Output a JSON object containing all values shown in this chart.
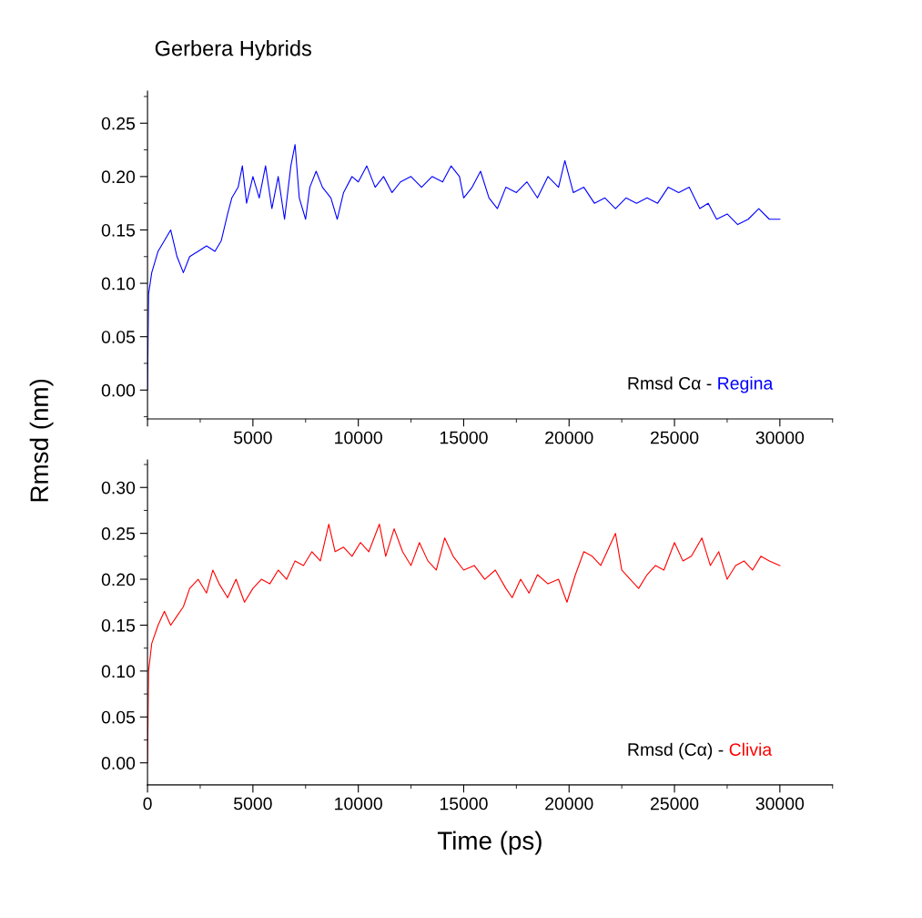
{
  "chart_data": [
    {
      "type": "line",
      "title": "Gerbera Hybrids",
      "ylabel": "Rmsd (nm)",
      "annotations": [
        "Rmsd Cα -"
      ],
      "xlim": [
        0,
        32500
      ],
      "ylim": [
        -0.027,
        0.28
      ],
      "xticks": [
        {
          "value": 0,
          "label": null
        },
        5000,
        10000,
        15000,
        20000,
        25000,
        30000
      ],
      "yticks": [
        {
          "value": 0,
          "label": "0.00"
        },
        0.05,
        {
          "value": 0.1,
          "label": "0.10"
        },
        0.15,
        {
          "value": 0.2,
          "label": "0.20"
        },
        0.25
      ],
      "grid": false,
      "legend": "bottom right",
      "series": [
        {
          "name": "Regina",
          "color": "#0000ff",
          "x": [
            0,
            50,
            200,
            500,
            800,
            1100,
            1400,
            1700,
            2000,
            2400,
            2800,
            3200,
            3500,
            3800,
            4000,
            4300,
            4500,
            4700,
            5000,
            5300,
            5600,
            5900,
            6200,
            6500,
            6800,
            7000,
            7200,
            7500,
            7700,
            8000,
            8300,
            8700,
            9000,
            9300,
            9700,
            10000,
            10400,
            10800,
            11200,
            11600,
            12000,
            12500,
            13000,
            13500,
            14000,
            14400,
            14800,
            15000,
            15400,
            15800,
            16200,
            16600,
            17000,
            17500,
            18000,
            18500,
            19000,
            19500,
            19800,
            20200,
            20700,
            21200,
            21700,
            22200,
            22700,
            23200,
            23700,
            24200,
            24700,
            25200,
            25700,
            26200,
            26600,
            27000,
            27500,
            28000,
            28500,
            29000,
            29500,
            30000
          ],
          "values": [
            0.0,
            0.09,
            0.11,
            0.13,
            0.14,
            0.15,
            0.125,
            0.11,
            0.125,
            0.13,
            0.135,
            0.13,
            0.14,
            0.165,
            0.18,
            0.19,
            0.21,
            0.175,
            0.2,
            0.18,
            0.21,
            0.17,
            0.2,
            0.16,
            0.21,
            0.23,
            0.18,
            0.16,
            0.19,
            0.205,
            0.19,
            0.18,
            0.16,
            0.185,
            0.2,
            0.195,
            0.21,
            0.19,
            0.2,
            0.185,
            0.195,
            0.2,
            0.19,
            0.2,
            0.195,
            0.21,
            0.2,
            0.18,
            0.19,
            0.205,
            0.18,
            0.17,
            0.19,
            0.185,
            0.195,
            0.18,
            0.2,
            0.19,
            0.215,
            0.185,
            0.19,
            0.175,
            0.18,
            0.17,
            0.18,
            0.175,
            0.18,
            0.175,
            0.19,
            0.185,
            0.19,
            0.17,
            0.175,
            0.16,
            0.165,
            0.155,
            0.16,
            0.17,
            0.16,
            0.16
          ]
        }
      ]
    },
    {
      "type": "line",
      "xlabel": "Time (ps)",
      "annotations": [
        "Rmsd (Cα) -"
      ],
      "xlim": [
        0,
        32500
      ],
      "ylim": [
        -0.024,
        0.33
      ],
      "xticks": [
        0,
        5000,
        10000,
        15000,
        20000,
        25000,
        30000
      ],
      "yticks": [
        {
          "value": 0,
          "label": "0.00"
        },
        0.05,
        {
          "value": 0.1,
          "label": "0.10"
        },
        0.15,
        {
          "value": 0.2,
          "label": "0.20"
        },
        0.25,
        {
          "value": 0.3,
          "label": "0.30"
        }
      ],
      "grid": false,
      "legend": "bottom right",
      "series": [
        {
          "name": "Clivia",
          "color": "#ff0000",
          "x": [
            0,
            50,
            200,
            500,
            800,
            1100,
            1400,
            1700,
            2000,
            2400,
            2800,
            3100,
            3400,
            3800,
            4200,
            4600,
            5000,
            5400,
            5800,
            6200,
            6600,
            7000,
            7400,
            7800,
            8200,
            8600,
            8900,
            9300,
            9700,
            10100,
            10500,
            11000,
            11300,
            11700,
            12100,
            12500,
            12900,
            13300,
            13700,
            14100,
            14500,
            15000,
            15500,
            16000,
            16500,
            17000,
            17300,
            17700,
            18100,
            18500,
            19000,
            19500,
            19900,
            20300,
            20700,
            21100,
            21500,
            21900,
            22200,
            22500,
            22900,
            23300,
            23700,
            24100,
            24500,
            25000,
            25400,
            25800,
            26300,
            26700,
            27100,
            27500,
            27900,
            28300,
            28700,
            29100,
            29500,
            30000
          ],
          "values": [
            0.0,
            0.1,
            0.13,
            0.15,
            0.165,
            0.15,
            0.16,
            0.17,
            0.19,
            0.2,
            0.185,
            0.21,
            0.195,
            0.18,
            0.2,
            0.175,
            0.19,
            0.2,
            0.195,
            0.21,
            0.2,
            0.22,
            0.215,
            0.23,
            0.22,
            0.26,
            0.23,
            0.235,
            0.225,
            0.24,
            0.23,
            0.26,
            0.225,
            0.255,
            0.23,
            0.215,
            0.24,
            0.22,
            0.21,
            0.245,
            0.225,
            0.21,
            0.215,
            0.2,
            0.21,
            0.19,
            0.18,
            0.2,
            0.185,
            0.205,
            0.195,
            0.2,
            0.175,
            0.205,
            0.23,
            0.225,
            0.215,
            0.235,
            0.25,
            0.21,
            0.2,
            0.19,
            0.205,
            0.215,
            0.21,
            0.24,
            0.22,
            0.225,
            0.245,
            0.215,
            0.23,
            0.2,
            0.215,
            0.22,
            0.21,
            0.225,
            0.22,
            0.215
          ]
        }
      ]
    }
  ]
}
